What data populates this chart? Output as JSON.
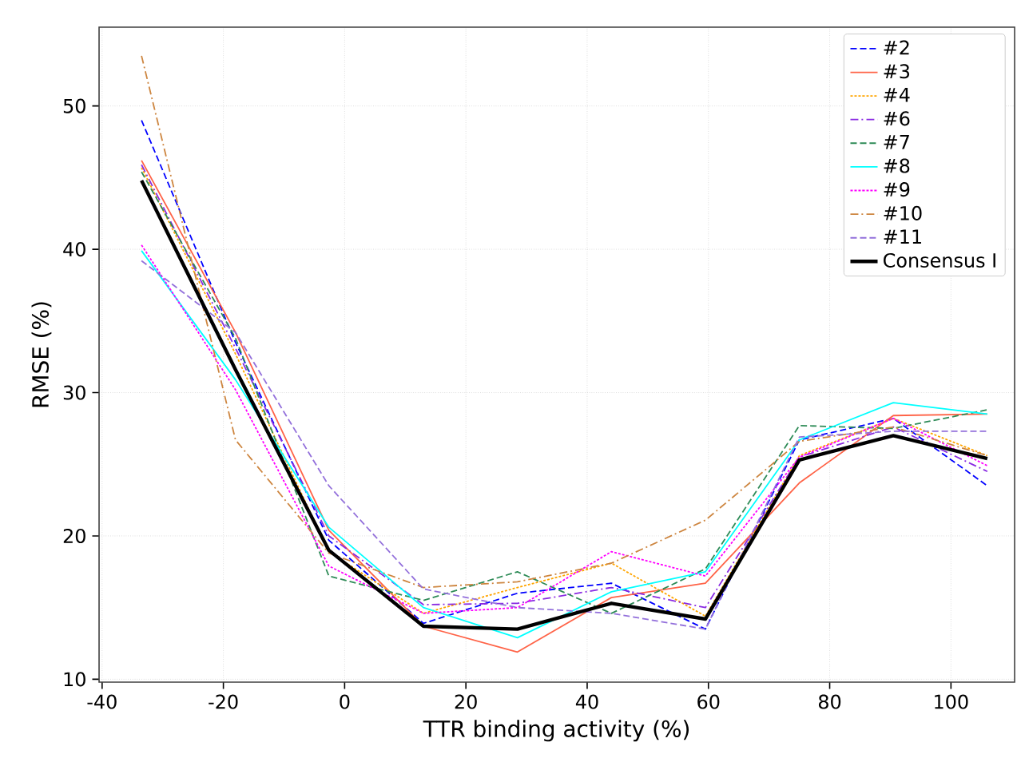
{
  "chart_data": {
    "type": "line",
    "xlabel": "TTR binding activity (%)",
    "ylabel": "RMSE (%)",
    "x": [
      -33.5,
      -18,
      -2.6,
      13,
      28.5,
      44,
      59.5,
      75,
      90.5,
      106
    ],
    "xlim": [
      -40.5,
      110.5
    ],
    "ylim": [
      9.8,
      55.5
    ],
    "xticks": [
      -40,
      -20,
      0,
      20,
      40,
      60,
      80,
      100
    ],
    "yticks": [
      10,
      20,
      30,
      40,
      50
    ],
    "grid": true,
    "legend": "top right",
    "series": [
      {
        "name": "#2",
        "color": "#0000ff",
        "line_style": "dashed",
        "values": [
          49.0,
          33.5,
          19.7,
          13.9,
          16.0,
          16.7,
          13.5,
          26.7,
          28.2,
          23.5
        ]
      },
      {
        "name": "#3",
        "color": "#ff6347",
        "line_style": "solid",
        "values": [
          46.2,
          34.2,
          20.4,
          13.7,
          11.9,
          15.7,
          16.7,
          23.7,
          28.4,
          28.5
        ]
      },
      {
        "name": "#4",
        "color": "#ffa500",
        "line_style": "dotted",
        "values": [
          45.7,
          32.7,
          18.9,
          14.6,
          16.4,
          18.1,
          14.4,
          25.6,
          28.2,
          25.6
        ]
      },
      {
        "name": "#6",
        "color": "#8a2be2",
        "line_style": "dashdot",
        "values": [
          45.9,
          33.1,
          20.0,
          15.2,
          15.3,
          16.4,
          15.0,
          25.5,
          27.6,
          24.5
        ]
      },
      {
        "name": "#7",
        "color": "#2e8b57",
        "line_style": "dashed",
        "values": [
          45.4,
          33.8,
          17.2,
          15.5,
          17.5,
          14.6,
          17.7,
          27.7,
          27.5,
          28.8
        ]
      },
      {
        "name": "#8",
        "color": "#00ffff",
        "line_style": "solid",
        "values": [
          39.9,
          30.9,
          20.6,
          15.0,
          12.9,
          16.1,
          17.5,
          26.7,
          29.3,
          28.5
        ]
      },
      {
        "name": "#9",
        "color": "#ff00ff",
        "line_style": "dotted",
        "values": [
          40.3,
          30.2,
          17.9,
          14.6,
          15.0,
          18.9,
          17.2,
          25.5,
          28.2,
          24.9
        ]
      },
      {
        "name": "#10",
        "color": "#cd853f",
        "line_style": "dashdot",
        "values": [
          53.5,
          26.7,
          18.8,
          16.4,
          16.8,
          18.1,
          21.1,
          26.6,
          27.6,
          25.6
        ]
      },
      {
        "name": "#11",
        "color": "#9370db",
        "line_style": "dashed",
        "values": [
          39.2,
          34.2,
          23.5,
          16.3,
          15.0,
          14.6,
          13.5,
          26.9,
          27.3,
          27.3
        ]
      },
      {
        "name": "Consensus I",
        "color": "#000000",
        "line_style": "solid",
        "values": [
          44.8,
          31.6,
          19.0,
          13.7,
          13.5,
          15.3,
          14.2,
          25.3,
          27.0,
          25.4
        ]
      }
    ]
  }
}
